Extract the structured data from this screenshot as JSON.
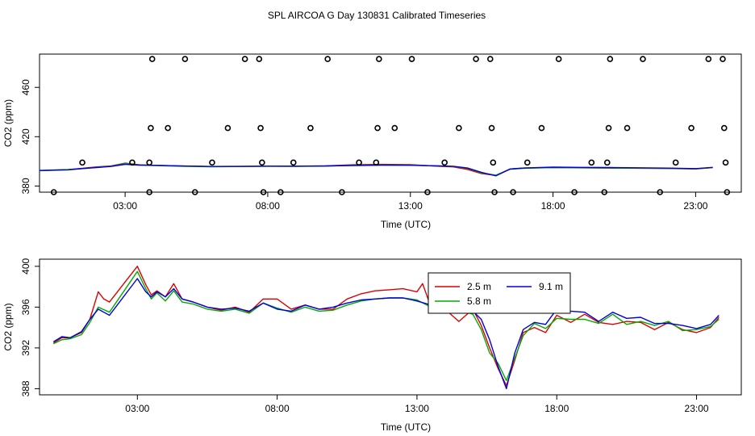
{
  "title": "SPL AIRCOA G  Day 130831  Calibrated Timeseries",
  "chart_data": [
    {
      "type": "scatter",
      "xlabel": "Time (UTC)",
      "ylabel": "CO2 (ppm)",
      "xlim": [
        0,
        24.6
      ],
      "ylim": [
        375,
        487
      ],
      "xticks": [
        {
          "v": 3,
          "label": "03:00"
        },
        {
          "v": 8,
          "label": "08:00"
        },
        {
          "v": 13,
          "label": "13:00"
        },
        {
          "v": 18,
          "label": "18:00"
        },
        {
          "v": 23,
          "label": "23:00"
        }
      ],
      "yticks": [
        {
          "v": 380,
          "label": "380"
        },
        {
          "v": 420,
          "label": "420"
        },
        {
          "v": 460,
          "label": "460"
        }
      ],
      "points": [
        {
          "x": 0.5,
          "y": 375
        },
        {
          "x": 1.5,
          "y": 399
        },
        {
          "x": 3.25,
          "y": 399
        },
        {
          "x": 3.85,
          "y": 375
        },
        {
          "x": 3.85,
          "y": 399
        },
        {
          "x": 3.9,
          "y": 427
        },
        {
          "x": 3.95,
          "y": 483
        },
        {
          "x": 4.5,
          "y": 427
        },
        {
          "x": 5.1,
          "y": 483
        },
        {
          "x": 5.45,
          "y": 375
        },
        {
          "x": 6.05,
          "y": 399
        },
        {
          "x": 6.6,
          "y": 427
        },
        {
          "x": 7.2,
          "y": 483
        },
        {
          "x": 7.7,
          "y": 483
        },
        {
          "x": 7.75,
          "y": 427
        },
        {
          "x": 7.8,
          "y": 399
        },
        {
          "x": 7.85,
          "y": 375
        },
        {
          "x": 8.45,
          "y": 375
        },
        {
          "x": 8.9,
          "y": 399
        },
        {
          "x": 9.5,
          "y": 427
        },
        {
          "x": 10.1,
          "y": 483
        },
        {
          "x": 10.6,
          "y": 375
        },
        {
          "x": 11.2,
          "y": 399
        },
        {
          "x": 11.8,
          "y": 399
        },
        {
          "x": 11.85,
          "y": 427
        },
        {
          "x": 11.9,
          "y": 483
        },
        {
          "x": 12.45,
          "y": 427
        },
        {
          "x": 13.05,
          "y": 483
        },
        {
          "x": 13.6,
          "y": 375
        },
        {
          "x": 14.2,
          "y": 399
        },
        {
          "x": 14.7,
          "y": 427
        },
        {
          "x": 15.3,
          "y": 483
        },
        {
          "x": 15.8,
          "y": 483
        },
        {
          "x": 15.85,
          "y": 427
        },
        {
          "x": 15.9,
          "y": 399
        },
        {
          "x": 15.95,
          "y": 375
        },
        {
          "x": 16.6,
          "y": 375
        },
        {
          "x": 17.1,
          "y": 399
        },
        {
          "x": 17.6,
          "y": 427
        },
        {
          "x": 18.2,
          "y": 483
        },
        {
          "x": 18.75,
          "y": 375
        },
        {
          "x": 19.35,
          "y": 399
        },
        {
          "x": 19.8,
          "y": 375
        },
        {
          "x": 19.9,
          "y": 399
        },
        {
          "x": 19.95,
          "y": 427
        },
        {
          "x": 20.0,
          "y": 483
        },
        {
          "x": 20.6,
          "y": 427
        },
        {
          "x": 21.15,
          "y": 483
        },
        {
          "x": 21.75,
          "y": 375
        },
        {
          "x": 22.3,
          "y": 399
        },
        {
          "x": 22.85,
          "y": 427
        },
        {
          "x": 23.45,
          "y": 483
        },
        {
          "x": 23.95,
          "y": 483
        },
        {
          "x": 24.0,
          "y": 427
        },
        {
          "x": 24.05,
          "y": 399
        },
        {
          "x": 24.1,
          "y": 375
        }
      ],
      "line_series": [
        {
          "color": "#dd0000",
          "x": [
            0,
            1,
            2,
            2.5,
            3,
            3.5,
            4,
            5,
            6,
            7,
            8,
            9,
            10,
            11,
            12,
            13,
            14,
            14.5,
            15,
            15.5,
            16,
            16.5,
            17,
            18,
            19,
            20,
            21,
            22,
            23,
            23.6
          ],
          "y": [
            392.5,
            393.2,
            395.5,
            396.2,
            398.5,
            397.2,
            396.8,
            396.2,
            395.8,
            395.9,
            396.1,
            396.0,
            396.3,
            397.2,
            397.5,
            397.3,
            396.0,
            395.5,
            393.5,
            390.0,
            388.6,
            393.8,
            394.6,
            395.0,
            394.7,
            394.5,
            394.4,
            394.2,
            393.8,
            395.0
          ]
        },
        {
          "color": "#00aa00",
          "x": [
            0,
            1,
            2,
            2.5,
            3,
            3.5,
            4,
            5,
            6,
            7,
            8,
            9,
            10,
            11,
            12,
            13,
            14,
            14.5,
            15,
            15.5,
            16,
            16.5,
            17,
            18,
            19,
            20,
            21,
            22,
            23,
            23.6
          ],
          "y": [
            392.4,
            393.0,
            395.2,
            396.0,
            398.2,
            397.0,
            396.6,
            396.0,
            395.6,
            395.8,
            396.0,
            395.9,
            396.1,
            396.8,
            397.0,
            396.9,
            396.2,
            395.8,
            394.3,
            390.5,
            388.8,
            393.6,
            394.4,
            394.9,
            394.8,
            394.6,
            394.5,
            394.3,
            393.9,
            394.9
          ]
        },
        {
          "color": "#0000dd",
          "x": [
            0,
            1,
            2,
            2.5,
            3,
            3.5,
            4,
            5,
            6,
            7,
            8,
            9,
            10,
            11,
            12,
            13,
            14,
            14.5,
            15,
            15.5,
            16,
            16.5,
            17,
            18,
            19,
            20,
            21,
            22,
            23,
            23.6
          ],
          "y": [
            392.6,
            393.3,
            395.0,
            395.8,
            397.6,
            396.9,
            396.8,
            396.2,
            395.8,
            395.9,
            396.1,
            396.1,
            396.2,
            396.6,
            396.9,
            396.8,
            396.3,
            396.0,
            394.6,
            391.0,
            388.2,
            393.8,
            394.6,
            395.3,
            395.1,
            395.0,
            394.8,
            394.5,
            394.1,
            395.1
          ]
        }
      ]
    },
    {
      "type": "line",
      "xlabel": "Time (UTC)",
      "ylabel": "CO2 (ppm)",
      "xlim": [
        -0.5,
        24.6
      ],
      "ylim": [
        387.4,
        400.7
      ],
      "xticks": [
        {
          "v": 3,
          "label": "03:00"
        },
        {
          "v": 8,
          "label": "08:00"
        },
        {
          "v": 13,
          "label": "13:00"
        },
        {
          "v": 18,
          "label": "18:00"
        },
        {
          "v": 23,
          "label": "23:00"
        }
      ],
      "yticks": [
        {
          "v": 388,
          "label": "388"
        },
        {
          "v": 392,
          "label": "392"
        },
        {
          "v": 396,
          "label": "396"
        },
        {
          "v": 400,
          "label": "400"
        }
      ],
      "legend": {
        "placement": "upper-middle",
        "entries": [
          {
            "label": "2.5 m",
            "color": "#dd0000"
          },
          {
            "label": "9.1 m",
            "color": "#0000dd"
          },
          {
            "label": "5.8 m",
            "color": "#00aa00"
          }
        ]
      },
      "series": [
        {
          "name": "2.5 m",
          "color": "#dd0000",
          "x": [
            0,
            0.3,
            0.6,
            1.0,
            1.3,
            1.6,
            1.8,
            2.0,
            3.0,
            3.3,
            3.5,
            3.7,
            4.0,
            4.3,
            4.6,
            5.0,
            5.5,
            6.0,
            6.5,
            7.0,
            7.5,
            8.0,
            8.5,
            9.0,
            9.5,
            10.0,
            10.5,
            11.0,
            11.5,
            12.0,
            12.5,
            13.0,
            13.2,
            13.5,
            14.0,
            14.5,
            15.0,
            15.3,
            15.6,
            15.9,
            16.2,
            16.5,
            16.8,
            17.2,
            17.6,
            18.0,
            18.5,
            19.0,
            19.5,
            20.0,
            20.5,
            21.0,
            21.5,
            22.0,
            22.5,
            23.0,
            23.5,
            23.8
          ],
          "y": [
            392.5,
            393.0,
            393.0,
            393.5,
            394.8,
            397.5,
            396.8,
            396.5,
            400.0,
            398.2,
            397.2,
            397.6,
            397.0,
            398.3,
            396.8,
            396.5,
            396.0,
            395.7,
            396.0,
            395.5,
            396.8,
            396.8,
            395.8,
            396.2,
            395.8,
            395.8,
            396.8,
            397.3,
            397.6,
            397.7,
            397.8,
            397.5,
            398.3,
            396.0,
            395.8,
            394.6,
            395.8,
            394.2,
            392.0,
            390.0,
            388.3,
            390.8,
            393.5,
            394.0,
            393.5,
            395.2,
            394.5,
            395.3,
            394.5,
            394.3,
            394.6,
            394.5,
            393.8,
            394.5,
            393.8,
            393.5,
            394.0,
            395.0
          ]
        },
        {
          "name": "5.8 m",
          "color": "#00aa00",
          "x": [
            0,
            0.3,
            0.6,
            1.0,
            1.3,
            1.6,
            2.0,
            3.0,
            3.3,
            3.5,
            3.7,
            4.0,
            4.3,
            4.6,
            5.0,
            5.5,
            6.0,
            6.5,
            7.0,
            7.5,
            8.0,
            8.5,
            9.0,
            9.5,
            10.0,
            10.5,
            11.0,
            11.5,
            12.0,
            12.5,
            13.0,
            13.5,
            14.0,
            14.5,
            15.0,
            15.3,
            15.6,
            15.9,
            16.2,
            16.5,
            16.8,
            17.2,
            17.6,
            18.0,
            18.5,
            19.0,
            19.5,
            20.0,
            20.5,
            21.0,
            21.5,
            22.0,
            22.5,
            23.0,
            23.5,
            23.8
          ],
          "y": [
            392.4,
            392.8,
            392.9,
            393.3,
            394.5,
            396.0,
            395.5,
            399.5,
            397.8,
            396.8,
            397.4,
            396.6,
            397.6,
            396.5,
            396.3,
            395.8,
            395.6,
            395.8,
            395.4,
            396.4,
            395.9,
            395.5,
            396.0,
            395.6,
            395.7,
            396.2,
            396.6,
            396.8,
            396.9,
            396.9,
            396.7,
            396.0,
            396.1,
            395.7,
            395.3,
            393.8,
            391.5,
            390.5,
            388.8,
            391.0,
            393.2,
            394.4,
            393.9,
            394.9,
            394.8,
            394.8,
            394.4,
            395.3,
            394.3,
            394.6,
            394.2,
            394.6,
            393.7,
            393.8,
            394.1,
            394.8
          ]
        },
        {
          "name": "9.1 m",
          "color": "#0000dd",
          "x": [
            0,
            0.3,
            0.6,
            1.0,
            1.3,
            1.6,
            2.0,
            3.0,
            3.3,
            3.5,
            3.7,
            4.0,
            4.3,
            4.6,
            5.0,
            5.5,
            6.0,
            6.5,
            7.0,
            7.5,
            8.0,
            8.5,
            9.0,
            9.5,
            10.0,
            10.5,
            11.0,
            11.5,
            12.0,
            12.5,
            13.0,
            13.5,
            14.0,
            14.5,
            15.0,
            15.3,
            15.6,
            15.9,
            16.2,
            16.5,
            16.8,
            17.2,
            17.6,
            18.0,
            18.5,
            19.0,
            19.5,
            20.0,
            20.5,
            21.0,
            21.5,
            22.0,
            22.5,
            23.0,
            23.5,
            23.8
          ],
          "y": [
            392.6,
            393.1,
            393.0,
            393.6,
            394.8,
            395.8,
            395.2,
            398.8,
            397.5,
            397.0,
            397.5,
            397.0,
            397.8,
            396.8,
            396.5,
            396.0,
            395.8,
            395.9,
            395.6,
            396.4,
            395.8,
            395.6,
            396.2,
            395.8,
            396.0,
            396.4,
            396.7,
            396.8,
            396.9,
            396.9,
            396.6,
            396.2,
            396.0,
            396.3,
            395.6,
            394.8,
            392.8,
            390.2,
            388.0,
            391.5,
            393.8,
            394.5,
            394.3,
            395.8,
            395.6,
            395.5,
            394.6,
            395.5,
            394.9,
            395.0,
            394.4,
            394.4,
            394.2,
            393.9,
            394.3,
            395.2
          ]
        }
      ]
    }
  ]
}
